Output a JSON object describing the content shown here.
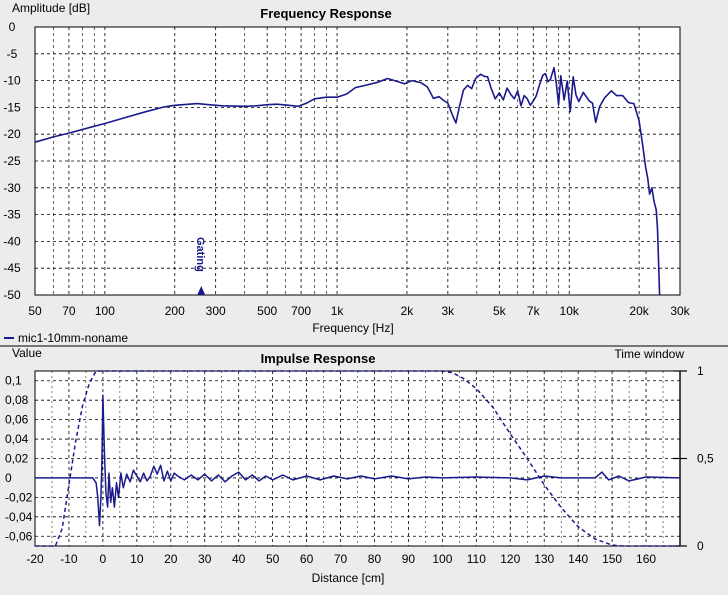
{
  "chart_data": [
    {
      "type": "line",
      "title": "Frequency Response",
      "ylabel": "Amplitude [dB]",
      "xlabel": "Frequency [Hz]",
      "xscale": "log",
      "xlim": [
        50,
        30000
      ],
      "ylim": [
        -50,
        0
      ],
      "x_ticks": [
        50,
        70,
        100,
        200,
        300,
        500,
        700,
        1000,
        2000,
        3000,
        5000,
        7000,
        10000,
        20000,
        30000
      ],
      "x_tick_labels": [
        "50",
        "70",
        "100",
        "200",
        "300",
        "500",
        "700",
        "1k",
        "2k",
        "3k",
        "5k",
        "7k",
        "10k",
        "20k",
        "30k"
      ],
      "y_ticks": [
        0,
        -5,
        -10,
        -15,
        -20,
        -25,
        -30,
        -35,
        -40,
        -45,
        -50
      ],
      "y_tick_labels": [
        "0",
        "-5",
        "-10",
        "-15",
        "-20",
        "-25",
        "-30",
        "-35",
        "-40",
        "-45",
        "-50"
      ],
      "legend": [
        "mic1-10mm-noname"
      ],
      "marker": {
        "label": "Gating",
        "x": 260
      },
      "series": [
        {
          "name": "mic1-10mm-noname",
          "color": "#1a1a8c",
          "points": [
            [
              50,
              -21.5
            ],
            [
              60,
              -20.5
            ],
            [
              70,
              -19.8
            ],
            [
              85,
              -18.8
            ],
            [
              100,
              -18.0
            ],
            [
              120,
              -17.0
            ],
            [
              150,
              -15.8
            ],
            [
              180,
              -14.9
            ],
            [
              200,
              -14.6
            ],
            [
              230,
              -14.4
            ],
            [
              250,
              -14.3
            ],
            [
              280,
              -14.5
            ],
            [
              320,
              -14.7
            ],
            [
              400,
              -14.8
            ],
            [
              450,
              -14.7
            ],
            [
              500,
              -14.5
            ],
            [
              550,
              -14.4
            ],
            [
              620,
              -14.6
            ],
            [
              680,
              -14.8
            ],
            [
              740,
              -14.2
            ],
            [
              800,
              -13.4
            ],
            [
              900,
              -13.1
            ],
            [
              1000,
              -13.1
            ],
            [
              1100,
              -12.5
            ],
            [
              1200,
              -11.3
            ],
            [
              1350,
              -10.8
            ],
            [
              1500,
              -10.3
            ],
            [
              1650,
              -9.6
            ],
            [
              1800,
              -10.1
            ],
            [
              1950,
              -10.6
            ],
            [
              2100,
              -10.0
            ],
            [
              2300,
              -10.4
            ],
            [
              2450,
              -11.2
            ],
            [
              2600,
              -13.3
            ],
            [
              2750,
              -13.0
            ],
            [
              2900,
              -13.8
            ],
            [
              3000,
              -14.2
            ],
            [
              3150,
              -16.6
            ],
            [
              3250,
              -17.9
            ],
            [
              3350,
              -15.2
            ],
            [
              3500,
              -11.8
            ],
            [
              3650,
              -10.9
            ],
            [
              3800,
              -11.5
            ],
            [
              3950,
              -9.6
            ],
            [
              4150,
              -8.8
            ],
            [
              4300,
              -9.2
            ],
            [
              4450,
              -9.3
            ],
            [
              4600,
              -11.3
            ],
            [
              4800,
              -13.4
            ],
            [
              5000,
              -12.3
            ],
            [
              5200,
              -13.6
            ],
            [
              5400,
              -11.4
            ],
            [
              5600,
              -12.6
            ],
            [
              5800,
              -13.4
            ],
            [
              6000,
              -11.9
            ],
            [
              6200,
              -14.7
            ],
            [
              6400,
              -12.8
            ],
            [
              6600,
              -13.4
            ],
            [
              6800,
              -14.6
            ],
            [
              7000,
              -13.8
            ],
            [
              7200,
              -12.9
            ],
            [
              7500,
              -10.4
            ],
            [
              7700,
              -9.0
            ],
            [
              7900,
              -8.7
            ],
            [
              8100,
              -10.2
            ],
            [
              8300,
              -9.8
            ],
            [
              8600,
              -7.6
            ],
            [
              8800,
              -10.5
            ],
            [
              9000,
              -14.5
            ],
            [
              9200,
              -9.1
            ],
            [
              9500,
              -13.6
            ],
            [
              9800,
              -10.1
            ],
            [
              10100,
              -15.8
            ],
            [
              10400,
              -9.3
            ],
            [
              10700,
              -12.7
            ],
            [
              11000,
              -13.9
            ],
            [
              11500,
              -12.2
            ],
            [
              12200,
              -13.8
            ],
            [
              12600,
              -14.2
            ],
            [
              13000,
              -17.8
            ],
            [
              13500,
              -14.9
            ],
            [
              14200,
              -13.2
            ],
            [
              15200,
              -11.9
            ],
            [
              16000,
              -12.8
            ],
            [
              17000,
              -12.8
            ],
            [
              18000,
              -14.1
            ],
            [
              19000,
              -14.3
            ],
            [
              20000,
              -17.5
            ],
            [
              20800,
              -22.6
            ],
            [
              21300,
              -26.0
            ],
            [
              21800,
              -28.3
            ],
            [
              22200,
              -31.2
            ],
            [
              22700,
              -30.0
            ],
            [
              23200,
              -32.6
            ],
            [
              23700,
              -34.1
            ],
            [
              24000,
              -37.6
            ],
            [
              24500,
              -50
            ]
          ]
        }
      ]
    },
    {
      "type": "line",
      "title": "Impulse Response",
      "ylabel": "Value",
      "y2label": "Time window",
      "xlabel": "Distance [cm]",
      "xlim": [
        -20,
        170
      ],
      "ylim": [
        -0.07,
        0.11
      ],
      "y2lim": [
        0,
        1
      ],
      "x_ticks": [
        -20,
        -10,
        0,
        10,
        20,
        30,
        40,
        50,
        60,
        70,
        80,
        90,
        100,
        110,
        120,
        130,
        140,
        150,
        160
      ],
      "x_tick_labels": [
        "-20",
        "-10",
        "0",
        "10",
        "20",
        "30",
        "40",
        "50",
        "60",
        "70",
        "80",
        "90",
        "100",
        "110",
        "120",
        "130",
        "140",
        "150",
        "160"
      ],
      "y_ticks": [
        0.1,
        0.08,
        0.06,
        0.04,
        0.02,
        0,
        -0.02,
        -0.04,
        -0.06
      ],
      "y_tick_labels": [
        "0,1",
        "0,08",
        "0,06",
        "0,04",
        "0,02",
        "0",
        "-0,02",
        "-0,04",
        "-0,06"
      ],
      "y2_ticks": [
        1,
        0.5,
        0
      ],
      "y2_tick_labels": [
        "1",
        "0,5",
        "0"
      ],
      "series": [
        {
          "name": "Impulse",
          "color": "#1a1a8c",
          "style": "solid",
          "axis": "left",
          "points": [
            [
              -20,
              0
            ],
            [
              -3,
              0
            ],
            [
              -2,
              -0.005
            ],
            [
              -1.5,
              -0.02
            ],
            [
              -1,
              -0.049
            ],
            [
              -0.6,
              -0.02
            ],
            [
              -0.3,
              0.015
            ],
            [
              0,
              0.085
            ],
            [
              0.4,
              0.03
            ],
            [
              0.9,
              -0.015
            ],
            [
              1.4,
              -0.03
            ],
            [
              1.8,
              0.005
            ],
            [
              2.3,
              -0.025
            ],
            [
              2.8,
              -0.01
            ],
            [
              3.4,
              -0.03
            ],
            [
              4,
              -0.005
            ],
            [
              4.6,
              -0.02
            ],
            [
              5.3,
              0.005
            ],
            [
              6,
              -0.01
            ],
            [
              7,
              0.004
            ],
            [
              8,
              -0.004
            ],
            [
              9,
              0.008
            ],
            [
              10,
              0.002
            ],
            [
              11,
              -0.004
            ],
            [
              12,
              0.005
            ],
            [
              13,
              -0.003
            ],
            [
              14,
              0.002
            ],
            [
              15,
              0.012
            ],
            [
              16,
              0.004
            ],
            [
              17,
              0.013
            ],
            [
              18,
              -0.003
            ],
            [
              19,
              0.007
            ],
            [
              20,
              -0.003
            ],
            [
              21,
              0.005
            ],
            [
              22,
              0.002
            ],
            [
              24,
              -0.002
            ],
            [
              26,
              0.003
            ],
            [
              28,
              -0.002
            ],
            [
              30,
              0.004
            ],
            [
              32,
              -0.003
            ],
            [
              34,
              0.003
            ],
            [
              36,
              -0.004
            ],
            [
              38,
              0.002
            ],
            [
              40,
              0.006
            ],
            [
              42,
              -0.002
            ],
            [
              44,
              0.003
            ],
            [
              46,
              -0.003
            ],
            [
              48,
              0.002
            ],
            [
              50,
              -0.002
            ],
            [
              53,
              0.003
            ],
            [
              56,
              -0.002
            ],
            [
              60,
              0.002
            ],
            [
              64,
              -0.002
            ],
            [
              68,
              0.002
            ],
            [
              72,
              -0.001
            ],
            [
              76,
              0.002
            ],
            [
              80,
              -0.001
            ],
            [
              85,
              0.002
            ],
            [
              90,
              -0.001
            ],
            [
              95,
              0.001
            ],
            [
              100,
              0
            ],
            [
              110,
              0.001
            ],
            [
              120,
              0
            ],
            [
              125,
              -0.002
            ],
            [
              130,
              0.002
            ],
            [
              135,
              0
            ],
            [
              145,
              0
            ],
            [
              147,
              0.006
            ],
            [
              149,
              -0.002
            ],
            [
              152,
              0.002
            ],
            [
              155,
              -0.003
            ],
            [
              160,
              0.001
            ],
            [
              170,
              0
            ]
          ]
        },
        {
          "name": "Time window",
          "color": "#1a1a8c",
          "style": "dashed",
          "axis": "right",
          "points": [
            [
              -20,
              0
            ],
            [
              -14,
              0
            ],
            [
              -12,
              0.1
            ],
            [
              -10,
              0.35
            ],
            [
              -8,
              0.6
            ],
            [
              -6,
              0.8
            ],
            [
              -4,
              0.93
            ],
            [
              -2,
              1
            ],
            [
              100,
              1
            ],
            [
              103,
              0.99
            ],
            [
              106,
              0.96
            ],
            [
              110,
              0.9
            ],
            [
              115,
              0.79
            ],
            [
              120,
              0.64
            ],
            [
              125,
              0.5
            ],
            [
              130,
              0.35
            ],
            [
              135,
              0.22
            ],
            [
              140,
              0.11
            ],
            [
              145,
              0.04
            ],
            [
              150,
              0.005
            ],
            [
              153,
              0
            ],
            [
              170,
              0
            ]
          ]
        }
      ]
    }
  ]
}
